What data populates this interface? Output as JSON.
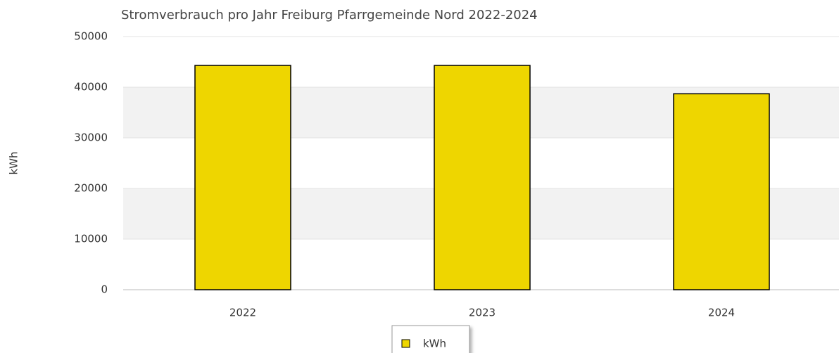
{
  "chart_data": {
    "type": "bar",
    "title": "Stromverbrauch pro Jahr Freiburg Pfarrgemeinde Nord 2022-2024",
    "y_label": "kWh",
    "categories": [
      "2022",
      "2023",
      "2024"
    ],
    "series": [
      {
        "name": "kWh",
        "color": "#eed600",
        "values": [
          44300,
          44300,
          38700
        ]
      }
    ],
    "ylim": [
      0,
      50000
    ],
    "yticks": [
      0,
      10000,
      20000,
      30000,
      40000,
      50000
    ],
    "grid": true,
    "legend": "bottom"
  }
}
